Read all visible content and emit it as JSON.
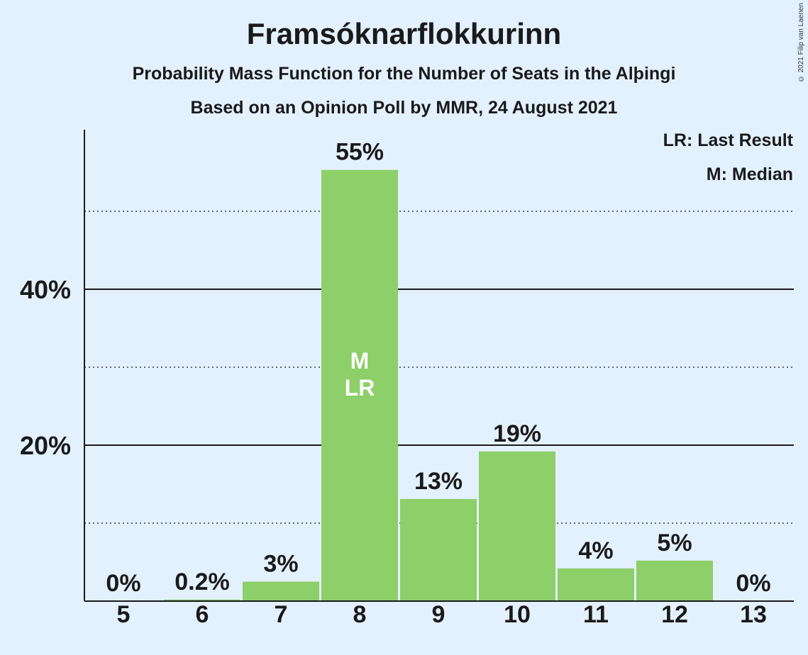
{
  "title": "Framsóknarflokkurinn",
  "subtitle": "Probability Mass Function for the Number of Seats in the Alþingi",
  "subtitle2": "Based on an Opinion Poll by MMR, 24 August 2021",
  "copyright": "© 2021 Filip van Laenen",
  "legend": {
    "last_result": "LR: Last Result",
    "median": "M: Median"
  },
  "colors": {
    "background": "#e3f1ff",
    "bar": "#8dcf68",
    "text": "#1a1a1a"
  },
  "chart_data": {
    "type": "bar",
    "categories": [
      "5",
      "6",
      "7",
      "8",
      "9",
      "10",
      "11",
      "12",
      "13"
    ],
    "values": [
      0,
      0.2,
      2.5,
      55.3,
      13.1,
      19.2,
      4.2,
      5.2,
      0
    ],
    "labels": [
      "0%",
      "0.2%",
      "3%",
      "55%",
      "13%",
      "19%",
      "4%",
      "5%",
      "0%"
    ],
    "ylim": [
      0,
      60
    ],
    "yticks_major": [
      20,
      40
    ],
    "ytick_labels": [
      "20%",
      "40%"
    ],
    "yticks_minor": [
      10,
      30,
      50
    ],
    "median_category": "8",
    "median_label": "M",
    "last_result_category": "8",
    "last_result_label": "LR",
    "grid": true,
    "legend_position": "top-right"
  }
}
